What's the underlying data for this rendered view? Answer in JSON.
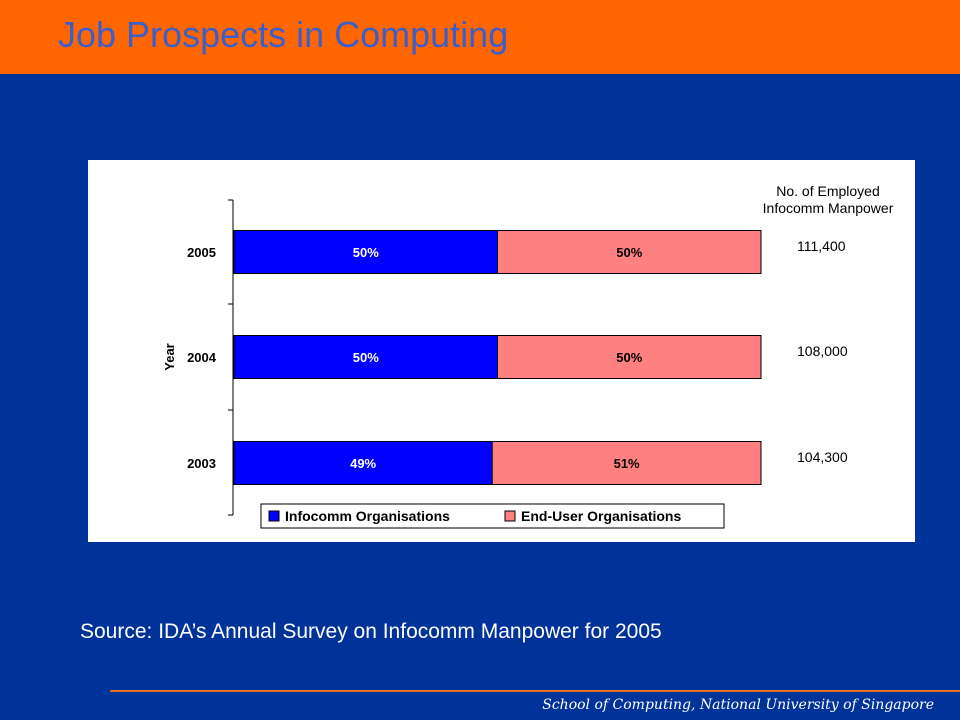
{
  "slide": {
    "title": "Job Prospects in Computing",
    "source": "Source: IDA’s Annual Survey on Infocomm Manpower for 2005",
    "footer": "School of Computing, National University of Singapore"
  },
  "colors": {
    "header": "#FF6600",
    "background": "#003399",
    "infocomm": "#0000FF",
    "end_user": "#FF8080"
  },
  "chart_data": {
    "type": "bar",
    "orientation": "horizontal",
    "stacked": true,
    "ylabel": "Year",
    "categories": [
      "2005",
      "2004",
      "2003"
    ],
    "series": [
      {
        "name": "Infocomm Organisations",
        "values": [
          50,
          50,
          49
        ],
        "labels": [
          "50%",
          "50%",
          "49%"
        ]
      },
      {
        "name": "End-User Organisations",
        "values": [
          50,
          50,
          51
        ],
        "labels": [
          "50%",
          "50%",
          "51%"
        ]
      }
    ],
    "side_header": [
      "No. of Employed",
      "Infocomm Manpower"
    ],
    "side_values": [
      "111,400",
      "108,000",
      "104,300"
    ],
    "legend_position": "bottom",
    "xlim": [
      0,
      100
    ]
  }
}
